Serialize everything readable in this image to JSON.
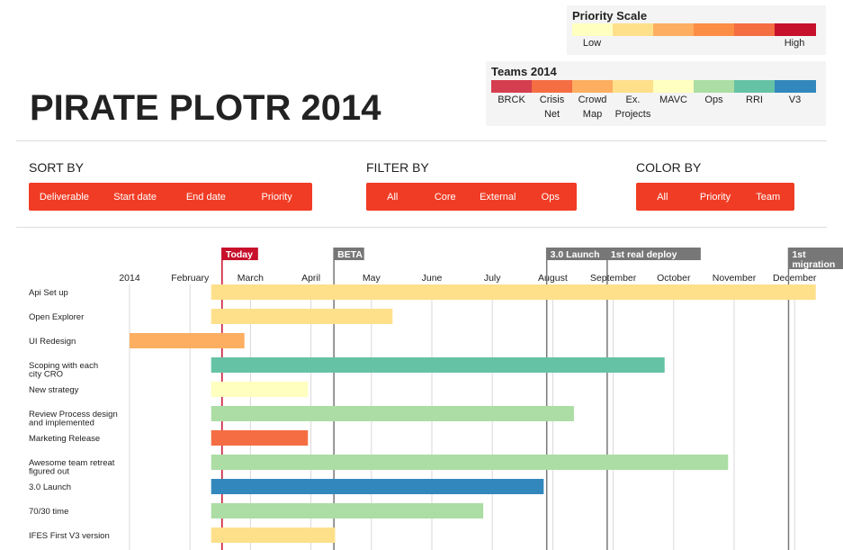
{
  "priority_scale": {
    "title": "Priority Scale",
    "colors": [
      "#ffffbf",
      "#fee08b",
      "#fdae61",
      "#fc8d45",
      "#f46d43",
      "#c7102b"
    ],
    "low_label": "Low",
    "high_label": "High"
  },
  "teams_legend": {
    "title": "Teams 2014",
    "teams": [
      {
        "label": "BRCK",
        "color": "#d53e4f"
      },
      {
        "label": "Crisis Net",
        "color": "#f46d43"
      },
      {
        "label": "Crowd Map",
        "color": "#fdae61"
      },
      {
        "label": "Ex. Projects",
        "color": "#fee08b"
      },
      {
        "label": "MAVC",
        "color": "#ffffbf"
      },
      {
        "label": "Ops",
        "color": "#abdda4"
      },
      {
        "label": "RRI",
        "color": "#66c2a5"
      },
      {
        "label": "V3",
        "color": "#3288bd"
      }
    ]
  },
  "app_title": "PIRATE PLOTR 2014",
  "controls": {
    "sort": {
      "label": "SORT BY",
      "options": [
        "Deliverable",
        "Start date",
        "End date",
        "Priority"
      ]
    },
    "filter": {
      "label": "FILTER BY",
      "options": [
        "All",
        "Core",
        "External",
        "Ops"
      ]
    },
    "color": {
      "label": "COLOR BY",
      "options": [
        "All",
        "Priority",
        "Team"
      ]
    }
  },
  "button_color": "#f03c24",
  "chart_data": {
    "type": "gantt",
    "x_unit": "months since Jan 1 2014",
    "xlim": [
      0,
      12
    ],
    "month_ticks": [
      "2014",
      "February",
      "March",
      "April",
      "May",
      "June",
      "July",
      "August",
      "September",
      "October",
      "November",
      "December"
    ],
    "milestones": [
      {
        "label": "Today",
        "x": 1.53,
        "color": "#c7102b"
      },
      {
        "label": "BETA",
        "x": 3.38,
        "color": "#777777"
      },
      {
        "label": "3.0 Launch",
        "x": 6.9,
        "color": "#777777"
      },
      {
        "label": "1st real deploy",
        "x": 7.9,
        "color": "#777777"
      },
      {
        "label": "1st migration",
        "x": 10.9,
        "color": "#777777"
      }
    ],
    "tasks": [
      {
        "name": "Api Set up",
        "start": 1.35,
        "end": 11.35,
        "color": "#fee08b"
      },
      {
        "name": "Open Explorer",
        "start": 1.35,
        "end": 4.35,
        "color": "#fee08b"
      },
      {
        "name": "UI Redesign",
        "start": 0.0,
        "end": 1.9,
        "color": "#fdae61"
      },
      {
        "name": "Scoping with each city CRO",
        "start": 1.35,
        "end": 8.85,
        "color": "#66c2a5"
      },
      {
        "name": "New strategy",
        "start": 1.35,
        "end": 2.95,
        "color": "#ffffbf"
      },
      {
        "name": "Review Process design and implemented",
        "start": 1.35,
        "end": 7.35,
        "color": "#abdda4"
      },
      {
        "name": "Marketing Release",
        "start": 1.35,
        "end": 2.95,
        "color": "#f46d43"
      },
      {
        "name": "Awesome team retreat figured out",
        "start": 1.35,
        "end": 9.9,
        "color": "#abdda4"
      },
      {
        "name": "3.0 Launch",
        "start": 1.35,
        "end": 6.85,
        "color": "#3288bd"
      },
      {
        "name": "70/30 time",
        "start": 1.35,
        "end": 5.85,
        "color": "#abdda4"
      },
      {
        "name": "IFES First V3 version",
        "start": 1.35,
        "end": 3.4,
        "color": "#fee08b"
      }
    ]
  }
}
